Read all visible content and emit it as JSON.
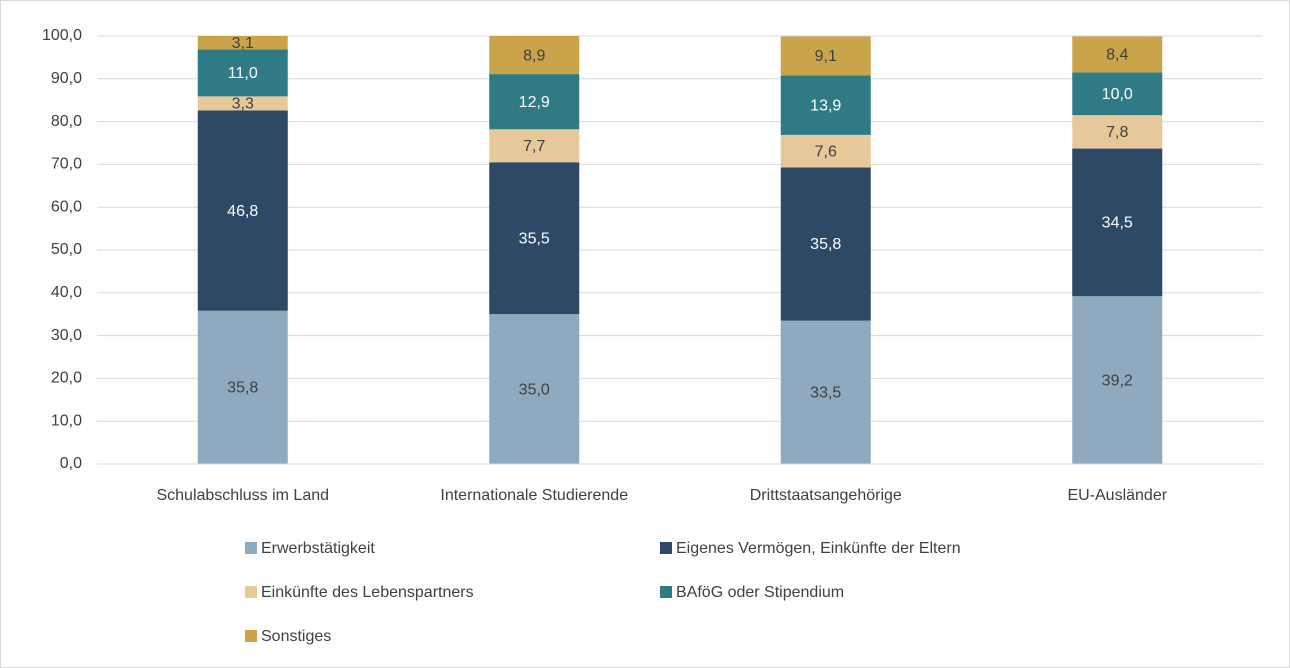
{
  "chart_data": {
    "type": "stacked_bar",
    "categories": [
      "Schulabschluss im Land",
      "Internationale Studierende",
      "Drittstaatsangehörige",
      "EU-Ausländer"
    ],
    "series": [
      {
        "name": "Erwerbstätigkeit",
        "color": "#8faabf",
        "values": [
          35.8,
          35.0,
          33.5,
          39.2
        ],
        "value_labels": [
          "35,8",
          "35,0",
          "33,5",
          "39,2"
        ]
      },
      {
        "name": "Eigenes Vermögen, Einkünfte der Eltern",
        "color": "#2e4965",
        "values": [
          46.8,
          35.5,
          35.8,
          34.5
        ],
        "value_labels": [
          "46,8",
          "35,5",
          "35,8",
          "34,5"
        ]
      },
      {
        "name": "Einkünfte des Lebenspartners",
        "color": "#e7c89b",
        "values": [
          3.3,
          7.7,
          7.6,
          7.8
        ],
        "value_labels": [
          "3,3",
          "7,7",
          "7,6",
          "7,8"
        ]
      },
      {
        "name": "BAföG oder Stipendium",
        "color": "#2e7b86",
        "values": [
          11.0,
          12.9,
          13.9,
          10.0
        ],
        "value_labels": [
          "11,0",
          "12,9",
          "13,9",
          "10,0"
        ]
      },
      {
        "name": "Sonstiges",
        "color": "#c9a44b",
        "values": [
          3.1,
          8.9,
          9.1,
          8.4
        ],
        "value_labels": [
          "3,1",
          "8,9",
          "9,1",
          "8,4"
        ]
      }
    ],
    "ylim": [
      0,
      100
    ],
    "yticks": [
      {
        "value": 0,
        "label": "0,0"
      },
      {
        "value": 10,
        "label": "10,0"
      },
      {
        "value": 20,
        "label": "20,0"
      },
      {
        "value": 30,
        "label": "30,0"
      },
      {
        "value": 40,
        "label": "40,0"
      },
      {
        "value": 50,
        "label": "50,0"
      },
      {
        "value": 60,
        "label": "60,0"
      },
      {
        "value": 70,
        "label": "70,0"
      },
      {
        "value": 80,
        "label": "80,0"
      },
      {
        "value": 90,
        "label": "90,0"
      },
      {
        "value": 100,
        "label": "100,0"
      }
    ],
    "grid": true
  }
}
